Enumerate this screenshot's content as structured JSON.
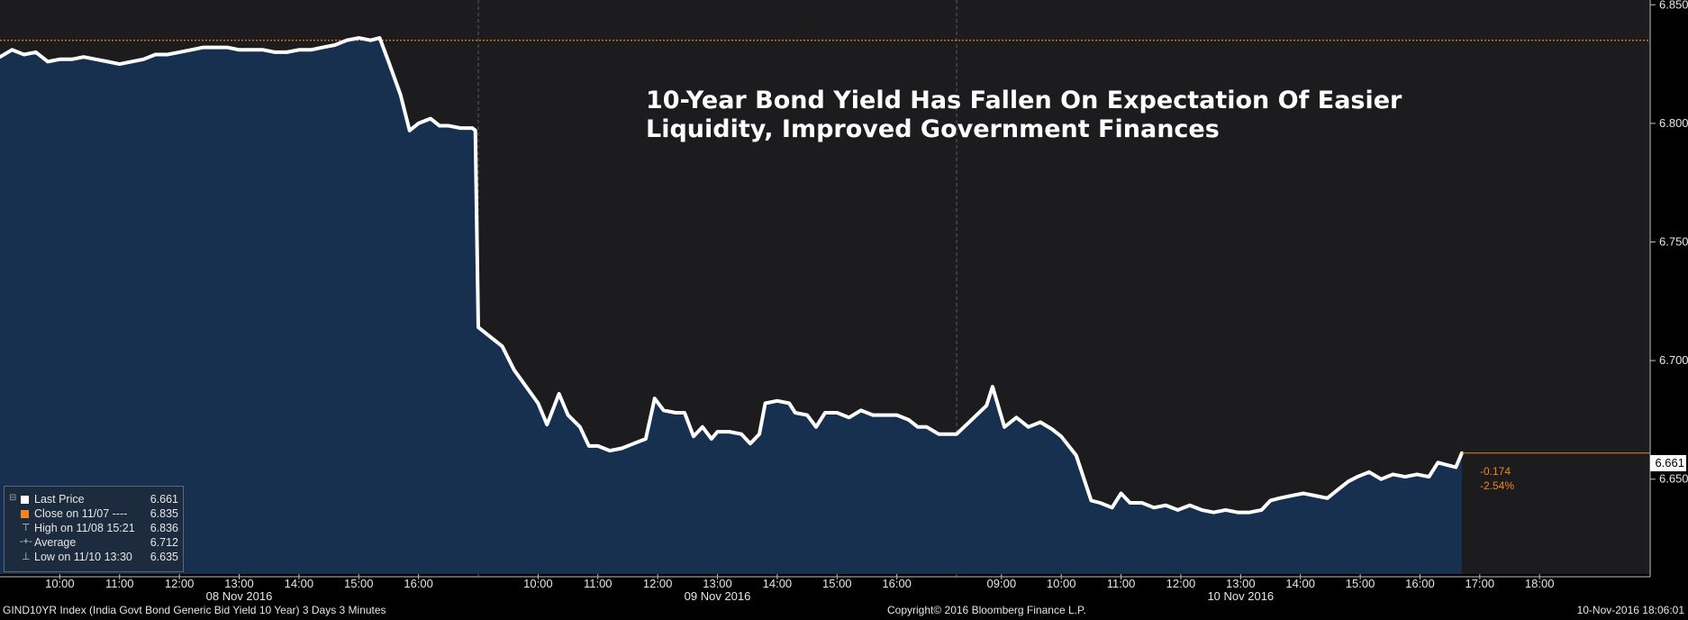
{
  "chart_data": {
    "type": "area",
    "title_lines": [
      "10-Year Bond Yield Has Fallen On Expectation Of Easier",
      "Liquidity, Improved Government Finances"
    ],
    "ylim": [
      6.61,
      6.852
    ],
    "y_ticks": [
      "6.850",
      "6.800",
      "6.750",
      "6.700",
      "6.650"
    ],
    "x_ticks": [
      {
        "t": 10.0,
        "label": "10:00"
      },
      {
        "t": 11.0,
        "label": "11:00"
      },
      {
        "t": 12.0,
        "label": "12:00"
      },
      {
        "t": 13.0,
        "label": "13:00"
      },
      {
        "t": 14.0,
        "label": "14:00"
      },
      {
        "t": 15.0,
        "label": "15:00"
      },
      {
        "t": 16.0,
        "label": "16:00"
      },
      {
        "t": 18.0,
        "label": "10:00"
      },
      {
        "t": 19.0,
        "label": "11:00"
      },
      {
        "t": 20.0,
        "label": "12:00"
      },
      {
        "t": 21.0,
        "label": "13:00"
      },
      {
        "t": 22.0,
        "label": "14:00"
      },
      {
        "t": 23.0,
        "label": "15:00"
      },
      {
        "t": 24.0,
        "label": "16:00"
      },
      {
        "t": 25.75,
        "label": "09:00"
      },
      {
        "t": 26.75,
        "label": "10:00"
      },
      {
        "t": 27.75,
        "label": "11:00"
      },
      {
        "t": 28.75,
        "label": "12:00"
      },
      {
        "t": 29.75,
        "label": "13:00"
      },
      {
        "t": 30.75,
        "label": "14:00"
      },
      {
        "t": 31.75,
        "label": "15:00"
      },
      {
        "t": 32.75,
        "label": "16:00"
      },
      {
        "t": 33.75,
        "label": "17:00"
      },
      {
        "t": 34.75,
        "label": "18:00"
      }
    ],
    "date_labels": [
      {
        "t": 13.0,
        "label": "08 Nov 2016"
      },
      {
        "t": 21.0,
        "label": "09 Nov 2016"
      },
      {
        "t": 29.75,
        "label": "10 Nov 2016"
      }
    ],
    "day_separators": [
      17.0,
      25.0
    ],
    "xlim": [
      9.0,
      36.6
    ],
    "reference_line": {
      "name": "Close on 11/07",
      "value": 6.835
    },
    "series": [
      {
        "name": "Last Price",
        "points": [
          [
            9.0,
            6.828
          ],
          [
            9.2,
            6.831
          ],
          [
            9.4,
            6.829
          ],
          [
            9.6,
            6.83
          ],
          [
            9.8,
            6.826
          ],
          [
            10.0,
            6.827
          ],
          [
            10.2,
            6.827
          ],
          [
            10.4,
            6.828
          ],
          [
            10.6,
            6.827
          ],
          [
            10.8,
            6.826
          ],
          [
            11.0,
            6.825
          ],
          [
            11.2,
            6.826
          ],
          [
            11.4,
            6.827
          ],
          [
            11.6,
            6.829
          ],
          [
            11.8,
            6.829
          ],
          [
            12.0,
            6.83
          ],
          [
            12.2,
            6.831
          ],
          [
            12.4,
            6.832
          ],
          [
            12.6,
            6.832
          ],
          [
            12.8,
            6.832
          ],
          [
            13.0,
            6.831
          ],
          [
            13.2,
            6.831
          ],
          [
            13.4,
            6.831
          ],
          [
            13.6,
            6.83
          ],
          [
            13.8,
            6.83
          ],
          [
            14.0,
            6.831
          ],
          [
            14.2,
            6.831
          ],
          [
            14.4,
            6.832
          ],
          [
            14.6,
            6.833
          ],
          [
            14.8,
            6.835
          ],
          [
            15.0,
            6.836
          ],
          [
            15.2,
            6.835
          ],
          [
            15.35,
            6.836
          ],
          [
            15.5,
            6.826
          ],
          [
            15.7,
            6.812
          ],
          [
            15.85,
            6.797
          ],
          [
            16.0,
            6.8
          ],
          [
            16.2,
            6.802
          ],
          [
            16.35,
            6.799
          ],
          [
            16.5,
            6.799
          ],
          [
            16.7,
            6.798
          ],
          [
            16.9,
            6.798
          ],
          [
            16.95,
            6.797
          ],
          [
            17.0,
            6.714
          ],
          [
            17.4,
            6.706
          ],
          [
            17.6,
            6.696
          ],
          [
            18.0,
            6.682
          ],
          [
            18.15,
            6.673
          ],
          [
            18.35,
            6.686
          ],
          [
            18.5,
            6.677
          ],
          [
            18.7,
            6.672
          ],
          [
            18.85,
            6.664
          ],
          [
            19.0,
            6.664
          ],
          [
            19.2,
            6.662
          ],
          [
            19.4,
            6.663
          ],
          [
            19.6,
            6.665
          ],
          [
            19.8,
            6.667
          ],
          [
            19.95,
            6.684
          ],
          [
            20.1,
            6.679
          ],
          [
            20.3,
            6.678
          ],
          [
            20.45,
            6.678
          ],
          [
            20.6,
            6.668
          ],
          [
            20.75,
            6.672
          ],
          [
            20.9,
            6.667
          ],
          [
            21.0,
            6.67
          ],
          [
            21.2,
            6.67
          ],
          [
            21.4,
            6.669
          ],
          [
            21.55,
            6.665
          ],
          [
            21.7,
            6.669
          ],
          [
            21.8,
            6.682
          ],
          [
            22.0,
            6.683
          ],
          [
            22.2,
            6.682
          ],
          [
            22.3,
            6.678
          ],
          [
            22.5,
            6.677
          ],
          [
            22.65,
            6.672
          ],
          [
            22.8,
            6.678
          ],
          [
            23.0,
            6.678
          ],
          [
            23.2,
            6.676
          ],
          [
            23.4,
            6.679
          ],
          [
            23.6,
            6.677
          ],
          [
            23.8,
            6.677
          ],
          [
            24.0,
            6.677
          ],
          [
            24.2,
            6.675
          ],
          [
            24.35,
            6.672
          ],
          [
            24.5,
            6.672
          ],
          [
            24.7,
            6.669
          ],
          [
            24.9,
            6.669
          ],
          [
            25.0,
            6.669
          ],
          [
            25.25,
            6.675
          ],
          [
            25.5,
            6.681
          ],
          [
            25.6,
            6.689
          ],
          [
            25.8,
            6.672
          ],
          [
            26.0,
            6.676
          ],
          [
            26.2,
            6.672
          ],
          [
            26.4,
            6.674
          ],
          [
            26.6,
            6.671
          ],
          [
            26.75,
            6.668
          ],
          [
            27.0,
            6.66
          ],
          [
            27.25,
            6.641
          ],
          [
            27.4,
            6.64
          ],
          [
            27.6,
            6.638
          ],
          [
            27.75,
            6.644
          ],
          [
            27.9,
            6.64
          ],
          [
            28.1,
            6.64
          ],
          [
            28.3,
            6.638
          ],
          [
            28.5,
            6.639
          ],
          [
            28.7,
            6.637
          ],
          [
            28.9,
            6.639
          ],
          [
            29.1,
            6.637
          ],
          [
            29.3,
            6.636
          ],
          [
            29.5,
            6.637
          ],
          [
            29.7,
            6.636
          ],
          [
            29.9,
            6.636
          ],
          [
            30.1,
            6.637
          ],
          [
            30.25,
            6.641
          ],
          [
            30.4,
            6.642
          ],
          [
            30.6,
            6.643
          ],
          [
            30.8,
            6.644
          ],
          [
            31.0,
            6.643
          ],
          [
            31.2,
            6.642
          ],
          [
            31.4,
            6.646
          ],
          [
            31.55,
            6.649
          ],
          [
            31.7,
            6.651
          ],
          [
            31.9,
            6.653
          ],
          [
            32.1,
            6.65
          ],
          [
            32.3,
            6.652
          ],
          [
            32.5,
            6.651
          ],
          [
            32.7,
            6.652
          ],
          [
            32.9,
            6.651
          ],
          [
            33.05,
            6.657
          ],
          [
            33.2,
            6.656
          ],
          [
            33.35,
            6.655
          ],
          [
            33.45,
            6.661
          ]
        ]
      }
    ],
    "last_value": "6.661",
    "change": "-0.174",
    "change_pct": "-2.54%",
    "legend": [
      {
        "marker": "square-white",
        "label": "Last Price",
        "value": "6.661"
      },
      {
        "marker": "square-orange",
        "label": "Close on 11/07 ----",
        "value": "6.835"
      },
      {
        "marker": "high-marker",
        "label": "High on 11/08 15:21",
        "value": "6.836"
      },
      {
        "marker": "average-marker",
        "label": "Average",
        "value": "6.712"
      },
      {
        "marker": "low-marker",
        "label": "Low on 11/10 13:30",
        "value": "6.635"
      }
    ]
  },
  "footer": {
    "left": "GIND10YR Index (India Govt Bond Generic Bid Yield 10 Year) 3 Days 3 Minutes",
    "center": "Copyright© 2016 Bloomberg Finance L.P.",
    "right": "10-Nov-2016 18:06:01"
  },
  "colors": {
    "area": "#17304f",
    "line": "#ffffff",
    "reference": "#f0861e",
    "background": "#000000",
    "plot": "#1c1b1d"
  }
}
